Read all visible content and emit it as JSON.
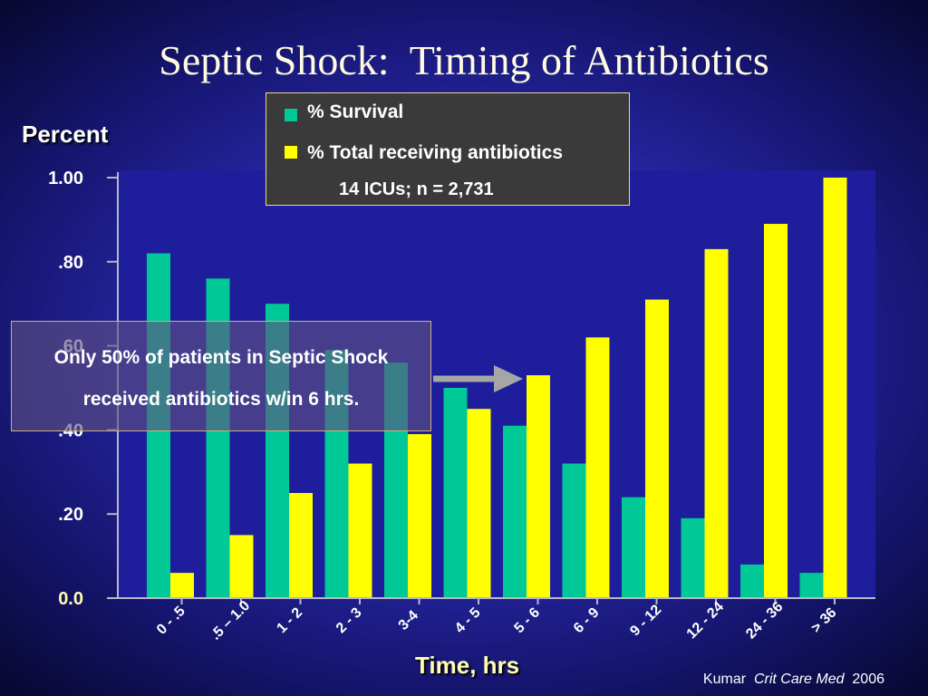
{
  "title": "Septic Shock:  Timing of Antibiotics",
  "legend": {
    "items": [
      {
        "label": "% Survival",
        "color": "#00c896"
      },
      {
        "label": "% Total receiving antibiotics",
        "color": "#ffff00"
      }
    ],
    "note": "14 ICUs; n = 2,731"
  },
  "callout": {
    "line1": "Only 50% of patients in Septic Shock",
    "line2": "received antibiotics w/in 6 hrs."
  },
  "citation": {
    "author": "Kumar",
    "journal": "Crit Care Med",
    "year": "2006"
  },
  "chart_data": {
    "type": "bar",
    "ylabel": "Percent",
    "xlabel": "Time, hrs",
    "ylim": [
      0,
      1.0
    ],
    "yticks": [
      "0.0",
      ".20",
      ".40",
      ".60",
      ".80",
      "1.00"
    ],
    "categories": [
      "0 - .5",
      ".5 – 1.0",
      "1 - 2",
      "2 - 3",
      "3-4",
      "4 - 5",
      "5 - 6",
      "6 - 9",
      "9 - 12",
      "12 - 24",
      "24 - 36",
      "> 36"
    ],
    "series": [
      {
        "name": "% Survival",
        "color": "#00c896",
        "values": [
          0.82,
          0.76,
          0.7,
          0.59,
          0.56,
          0.5,
          0.41,
          0.32,
          0.24,
          0.19,
          0.08,
          0.06
        ]
      },
      {
        "name": "% Total receiving antibiotics",
        "color": "#ffff00",
        "values": [
          0.06,
          0.15,
          0.25,
          0.32,
          0.39,
          0.45,
          0.53,
          0.62,
          0.71,
          0.83,
          0.89,
          1.0
        ]
      }
    ]
  }
}
